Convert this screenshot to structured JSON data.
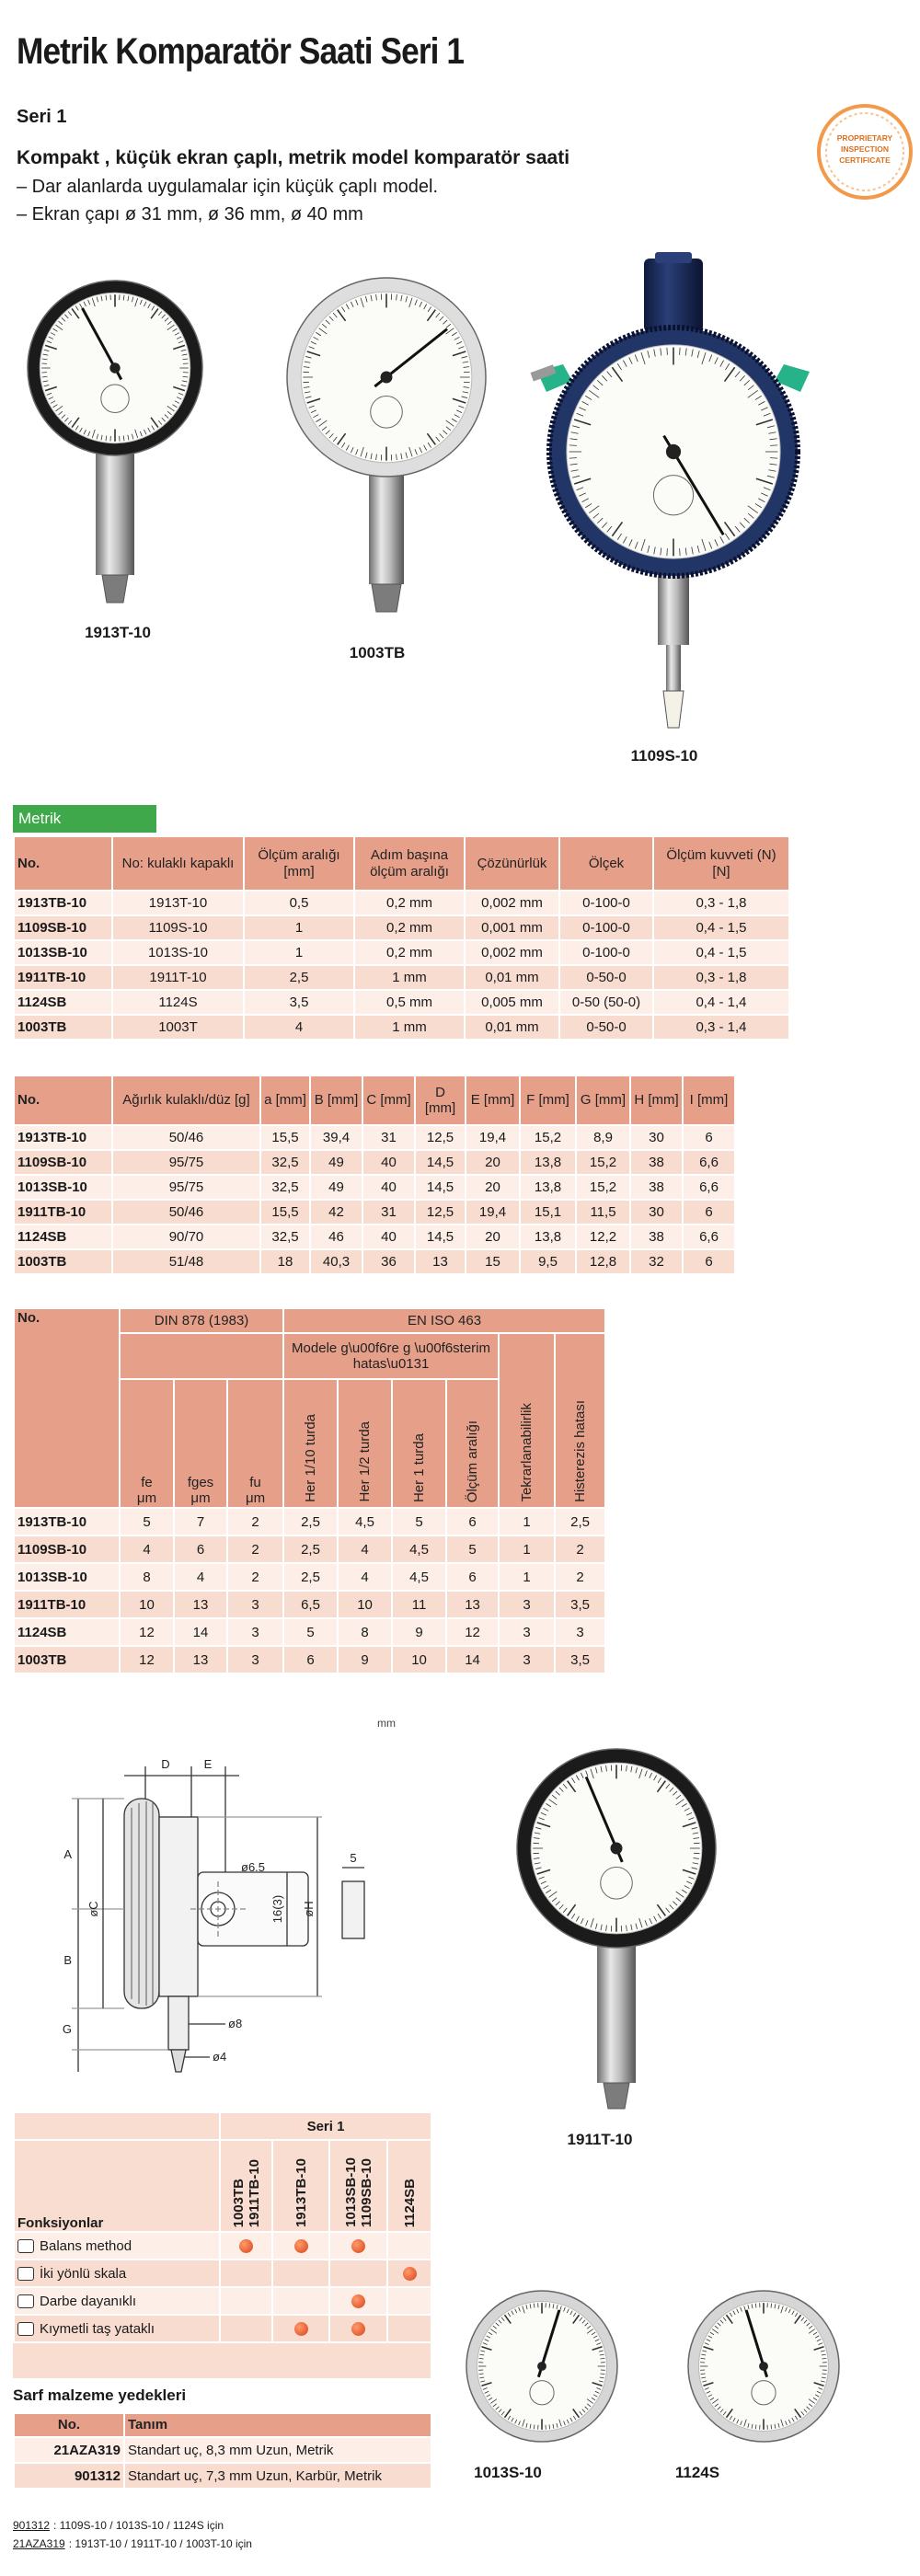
{
  "header": {
    "title": "Metrik Komparatör Saati Seri 1",
    "series": "Seri 1",
    "subtitle": "Kompakt , küçük ekran çaplı, metrik model komparatör saati",
    "bullets": [
      "–  Dar alanlarda uygulamalar için küçük çaplı model.",
      "–  Ekran çapı ø 31 mm, ø 36 mm, ø 40 mm"
    ]
  },
  "badge": [
    "PROPRIETARY",
    "INSPECTION",
    "CERTIFICATE"
  ],
  "products": [
    "1913T-10",
    "1003TB",
    "1109S-10",
    "1911T-10",
    "1013S-10",
    "1124S"
  ],
  "section": "Metrik",
  "table1": {
    "header": [
      "No.",
      "No: kulaklı kapaklı",
      "Ölçüm aralığı [mm]",
      "Adım başına ölçüm aralığı",
      "Çözünürlük",
      "Ölçek",
      "Ölçüm kuvveti (N) [N]"
    ],
    "rows": [
      [
        "1913TB-10",
        "1913T-10",
        "0,5",
        "0,2 mm",
        "0,002 mm",
        "0-100-0",
        "0,3 - 1,8"
      ],
      [
        "1109SB-10",
        "1109S-10",
        "1",
        "0,2 mm",
        "0,001 mm",
        "0-100-0",
        "0,4 - 1,5"
      ],
      [
        "1013SB-10",
        "1013S-10",
        "1",
        "0,2 mm",
        "0,002 mm",
        "0-100-0",
        "0,4 - 1,5"
      ],
      [
        "1911TB-10",
        "1911T-10",
        "2,5",
        "1 mm",
        "0,01 mm",
        "0-50-0",
        "0,3 - 1,8"
      ],
      [
        "1124SB",
        "1124S",
        "3,5",
        "0,5 mm",
        "0,005 mm",
        "0-50 (50-0)",
        "0,4 - 1,4"
      ],
      [
        "1003TB",
        "1003T",
        "4",
        "1 mm",
        "0,01 mm",
        "0-50-0",
        "0,3 - 1,4"
      ]
    ]
  },
  "table2": {
    "header": [
      "No.",
      "Ağırlık kulaklı/düz [g]",
      "a [mm]",
      "B [mm]",
      "C [mm]",
      "D [mm]",
      "E [mm]",
      "F [mm]",
      "G [mm]",
      "H [mm]",
      "I [mm]"
    ],
    "rows": [
      [
        "1913TB-10",
        "50/46",
        "15,5",
        "39,4",
        "31",
        "12,5",
        "19,4",
        "15,2",
        "8,9",
        "30",
        "6"
      ],
      [
        "1109SB-10",
        "95/75",
        "32,5",
        "49",
        "40",
        "14,5",
        "20",
        "13,8",
        "15,2",
        "38",
        "6,6"
      ],
      [
        "1013SB-10",
        "95/75",
        "32,5",
        "49",
        "40",
        "14,5",
        "20",
        "13,8",
        "15,2",
        "38",
        "6,6"
      ],
      [
        "1911TB-10",
        "50/46",
        "15,5",
        "42",
        "31",
        "12,5",
        "19,4",
        "15,1",
        "11,5",
        "30",
        "6"
      ],
      [
        "1124SB",
        "90/70",
        "32,5",
        "46",
        "40",
        "14,5",
        "20",
        "13,8",
        "12,2",
        "38",
        "6,6"
      ],
      [
        "1003TB",
        "51/48",
        "18",
        "40,3",
        "36",
        "13",
        "15",
        "9,5",
        "12,8",
        "32",
        "6"
      ]
    ]
  },
  "table3": {
    "no": "No.",
    "din": "DIN 878 (1983)",
    "en": "EN ISO 463",
    "model_error": "Modele g\\u00f6re g \\u00f6sterim hatas\\u0131",
    "repeat": "Tekrarlanabilirlik",
    "hyst": "Histerezis hatası",
    "din_cols": [
      [
        "fe",
        "μm"
      ],
      [
        "fges",
        "μm"
      ],
      [
        "fu",
        "μm"
      ]
    ],
    "model_cols": [
      "Her 1/10 turda",
      "Her 1/2 turda",
      "Her 1 turda",
      "Ölçüm aralığı"
    ],
    "rows": [
      [
        "1913TB-10",
        "5",
        "7",
        "2",
        "2,5",
        "4,5",
        "5",
        "6",
        "1",
        "2,5"
      ],
      [
        "1109SB-10",
        "4",
        "6",
        "2",
        "2,5",
        "4",
        "4,5",
        "5",
        "1",
        "2"
      ],
      [
        "1013SB-10",
        "8",
        "4",
        "2",
        "2,5",
        "4",
        "4,5",
        "6",
        "1",
        "2"
      ],
      [
        "1911TB-10",
        "10",
        "13",
        "3",
        "6,5",
        "10",
        "11",
        "13",
        "3",
        "3,5"
      ],
      [
        "1124SB",
        "12",
        "14",
        "3",
        "5",
        "8",
        "9",
        "12",
        "3",
        "3"
      ],
      [
        "1003TB",
        "12",
        "13",
        "3",
        "6",
        "9",
        "10",
        "14",
        "3",
        "3,5"
      ]
    ]
  },
  "unit_note": "mm",
  "drawing_labels": [
    "D",
    "E",
    "A",
    "B",
    "G",
    "øC",
    "ø6.5",
    "5",
    "16(3)",
    "øH",
    "ø8",
    "ø4"
  ],
  "functions": {
    "title": "Seri 1",
    "label": "Fonksiyonlar",
    "columns": [
      [
        "1003TB",
        "1911TB-10"
      ],
      [
        "1913TB-10"
      ],
      [
        "1013SB-10",
        "1109SB-10"
      ],
      [
        "1124SB"
      ]
    ],
    "rows": [
      {
        "name": "Balans method",
        "marks": [
          true,
          true,
          true,
          false
        ]
      },
      {
        "name": "İki yönlü skala",
        "marks": [
          false,
          false,
          false,
          true
        ]
      },
      {
        "name": "Darbe dayanıklı",
        "marks": [
          false,
          false,
          true,
          false
        ]
      },
      {
        "name": "Kıymetli taş yataklı",
        "marks": [
          false,
          true,
          true,
          false
        ]
      }
    ]
  },
  "spares": {
    "title": "Sarf malzeme yedekleri",
    "header": [
      "No.",
      "Tanım"
    ],
    "rows": [
      [
        "21AZA319",
        "Standart uç, 8,3 mm Uzun, Metrik"
      ],
      [
        "901312",
        "Standart uç, 7,3 mm Uzun, Karbür, Metrik"
      ]
    ]
  },
  "footnotes": [
    {
      "code": "901312",
      "text": ": 1109S-10 / 1013S-10 / 1124S için"
    },
    {
      "code": "21AZA319",
      "text": ": 1913T-10 / 1911T-10 / 1003T-10 için"
    }
  ]
}
